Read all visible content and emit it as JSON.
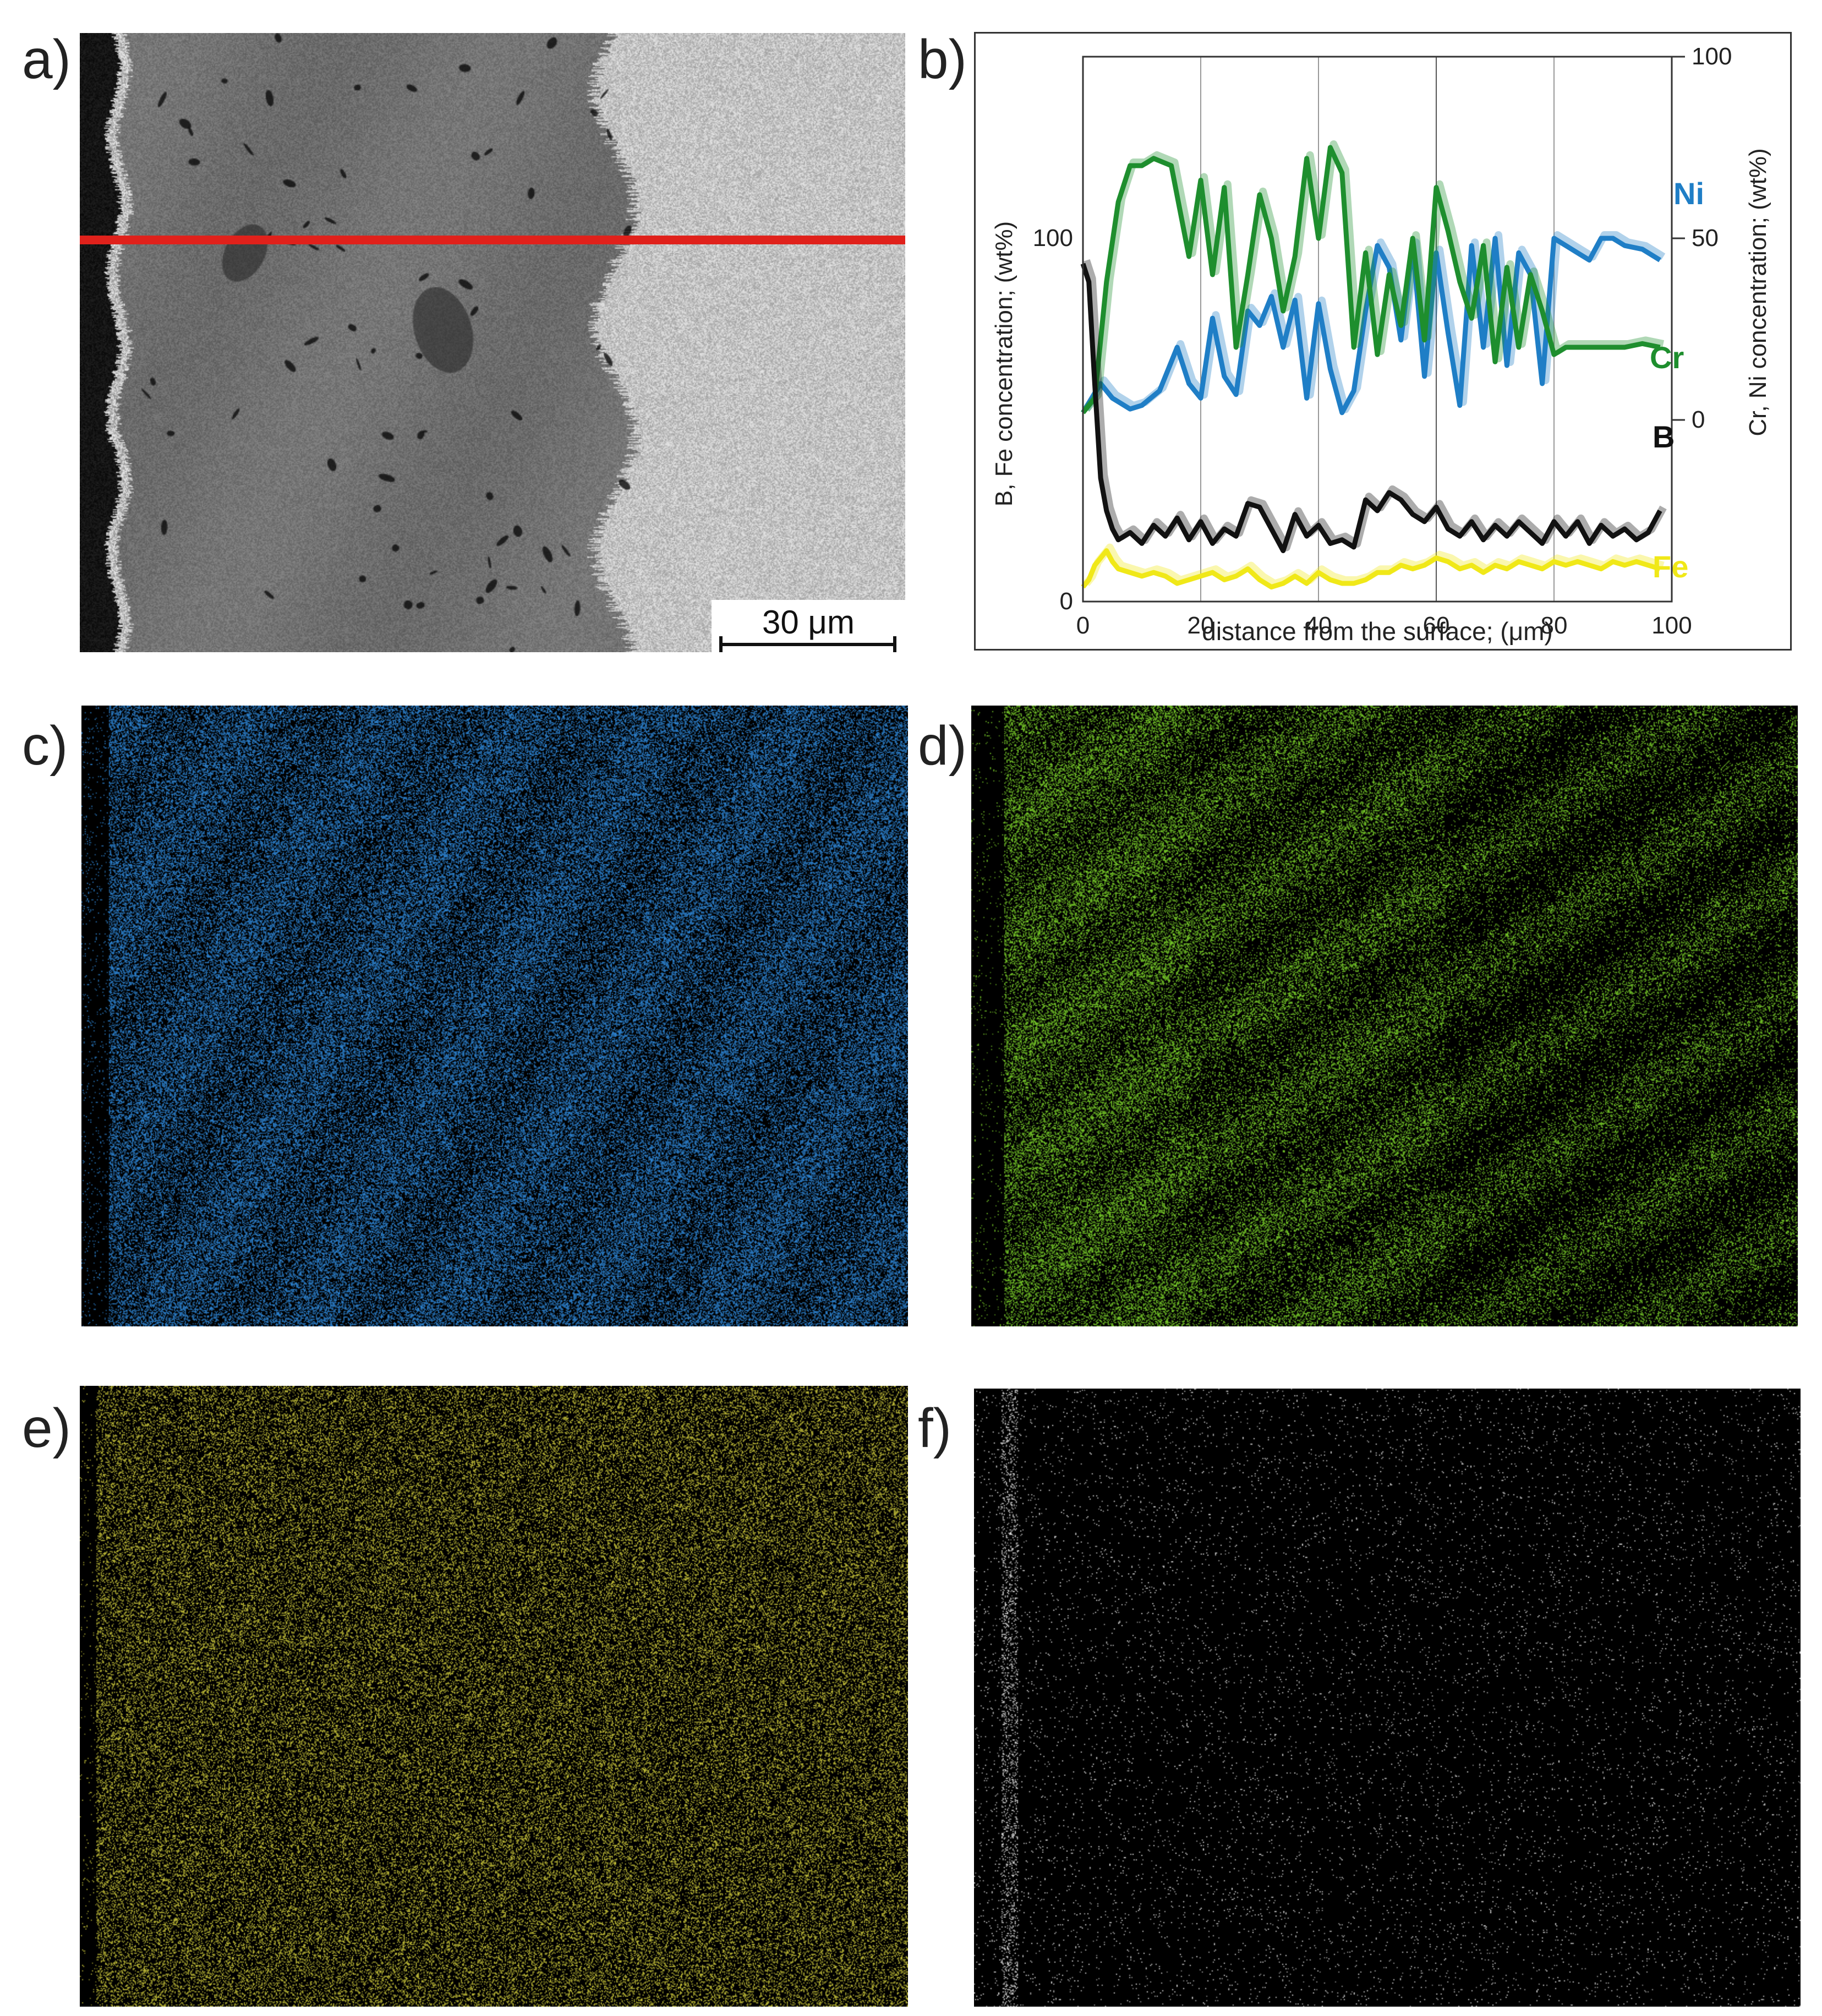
{
  "figure": {
    "panel_labels": [
      "a)",
      "b)",
      "c)",
      "d)",
      "e)",
      "f)"
    ]
  },
  "sem_image": {
    "scale_bar_label": "30 μm",
    "marker_color": "#e0211b"
  },
  "element_maps": [
    {
      "panel": "c)",
      "color": "#2e86d6",
      "description_icon": "ni-map"
    },
    {
      "panel": "d)",
      "color": "#7bd12a",
      "description_icon": "cr-map"
    },
    {
      "panel": "e)",
      "color": "#c8c43a",
      "description_icon": "fe-map"
    },
    {
      "panel": "f)",
      "color": "#e8e8e8",
      "description_icon": "b-map"
    }
  ],
  "chart_data": {
    "type": "line",
    "xlabel": "distance from the surface; (μm)",
    "ylabel_left": "B, Fe concentration; (wt%)",
    "ylabel_right": "Cr, Ni concentration; (wt%)",
    "xlim": [
      0,
      100
    ],
    "x_ticks": [
      "0",
      "20",
      "40",
      "60",
      "80",
      "100"
    ],
    "ylim_left": [
      0,
      150
    ],
    "y_ticks_left": [
      "0",
      "100"
    ],
    "y_ticks_left_values": [
      0,
      100
    ],
    "ylim_right": [
      -50,
      100
    ],
    "y_ticks_right": [
      "0",
      "50",
      "100"
    ],
    "y_ticks_right_values": [
      0,
      50,
      100
    ],
    "grid": "vertical",
    "series": [
      {
        "name": "Ni",
        "color": "#1f7ec6",
        "axis": "right",
        "x": [
          0,
          3,
          5,
          8,
          10,
          13,
          16,
          18,
          20,
          22,
          24,
          26,
          28,
          30,
          32,
          34,
          36,
          38,
          40,
          42,
          44,
          46,
          48,
          50,
          52,
          54,
          56,
          58,
          60,
          62,
          64,
          66,
          68,
          70,
          72,
          74,
          76,
          78,
          80,
          82,
          84,
          86,
          88,
          90,
          92,
          95,
          98
        ],
        "y": [
          2,
          10,
          6,
          3,
          4,
          8,
          20,
          10,
          6,
          28,
          12,
          7,
          30,
          26,
          34,
          20,
          33,
          6,
          32,
          14,
          2,
          8,
          30,
          48,
          42,
          22,
          48,
          12,
          46,
          24,
          4,
          48,
          20,
          50,
          15,
          46,
          40,
          10,
          50,
          48,
          46,
          44,
          50,
          50,
          48,
          47,
          44
        ]
      },
      {
        "name": "Cr",
        "color": "#1e8e2e",
        "axis": "right",
        "x": [
          0,
          2,
          4,
          6,
          8,
          10,
          12,
          15,
          18,
          20,
          22,
          24,
          26,
          28,
          30,
          32,
          34,
          36,
          38,
          40,
          42,
          44,
          46,
          48,
          50,
          52,
          54,
          56,
          58,
          60,
          62,
          64,
          66,
          68,
          70,
          72,
          74,
          76,
          78,
          80,
          82,
          85,
          88,
          92,
          95,
          98
        ],
        "y": [
          2,
          6,
          38,
          60,
          70,
          70,
          72,
          70,
          45,
          66,
          40,
          64,
          20,
          40,
          62,
          50,
          30,
          45,
          72,
          50,
          75,
          68,
          20,
          46,
          18,
          40,
          26,
          50,
          22,
          64,
          52,
          38,
          28,
          48,
          16,
          42,
          20,
          40,
          30,
          18,
          20,
          20,
          20,
          20,
          21,
          20
        ]
      },
      {
        "name": "B",
        "color": "#111111",
        "axis": "left",
        "x": [
          0,
          1,
          2,
          3,
          4,
          5,
          6,
          8,
          10,
          12,
          14,
          16,
          18,
          20,
          22,
          24,
          26,
          28,
          30,
          32,
          34,
          36,
          38,
          40,
          42,
          44,
          46,
          48,
          50,
          52,
          54,
          56,
          58,
          60,
          62,
          64,
          66,
          68,
          70,
          72,
          74,
          76,
          78,
          80,
          82,
          84,
          86,
          88,
          90,
          92,
          94,
          96,
          98
        ],
        "y": [
          93,
          88,
          60,
          34,
          25,
          20,
          17,
          19,
          16,
          21,
          18,
          23,
          17,
          22,
          16,
          20,
          18,
          27,
          26,
          20,
          14,
          24,
          18,
          21,
          16,
          17,
          15,
          28,
          25,
          30,
          28,
          24,
          22,
          26,
          20,
          18,
          22,
          17,
          21,
          18,
          22,
          19,
          16,
          22,
          18,
          22,
          16,
          21,
          18,
          20,
          17,
          19,
          25
        ]
      },
      {
        "name": "Fe",
        "color": "#f0e818",
        "axis": "left",
        "x": [
          0,
          1,
          2,
          3,
          4,
          5,
          6,
          8,
          10,
          12,
          14,
          16,
          18,
          20,
          22,
          24,
          26,
          28,
          30,
          32,
          34,
          36,
          38,
          40,
          42,
          44,
          46,
          48,
          50,
          52,
          54,
          56,
          58,
          60,
          62,
          64,
          66,
          68,
          70,
          72,
          74,
          76,
          78,
          80,
          82,
          84,
          86,
          88,
          90,
          92,
          94,
          96,
          98
        ],
        "y": [
          4,
          6,
          10,
          12,
          14,
          11,
          9,
          8,
          7,
          8,
          7,
          5,
          6,
          7,
          8,
          6,
          7,
          9,
          6,
          4,
          5,
          7,
          5,
          8,
          6,
          5,
          5,
          6,
          8,
          8,
          10,
          9,
          10,
          12,
          11,
          9,
          10,
          8,
          10,
          9,
          11,
          10,
          9,
          11,
          10,
          11,
          10,
          9,
          11,
          10,
          11,
          10,
          9
        ]
      }
    ],
    "legend_labels": [
      "Ni",
      "Cr",
      "B",
      "Fe"
    ],
    "tick_label_color": "#222222"
  }
}
